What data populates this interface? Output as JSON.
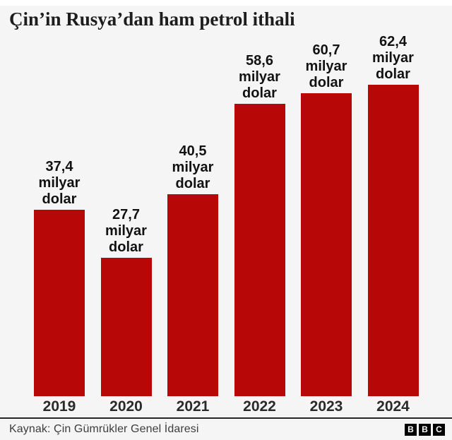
{
  "header": {
    "title": "Çin’in Rusya’dan ham petrol ithali"
  },
  "chart_data": {
    "type": "bar",
    "title": "Çin’in Rusya’dan ham petrol ithali",
    "categories": [
      "2019",
      "2020",
      "2021",
      "2022",
      "2023",
      "2024"
    ],
    "values": [
      37.4,
      27.7,
      40.5,
      58.6,
      60.7,
      62.4
    ],
    "value_labels": [
      "37,4",
      "27,7",
      "40,5",
      "58,6",
      "60,7",
      "62,4"
    ],
    "unit_lines": [
      "milyar",
      "dolar"
    ],
    "xlabel": "",
    "ylabel": "",
    "ylim": [
      0,
      65
    ],
    "grid": false,
    "legend": "none",
    "bar_color": "#b80707"
  },
  "footer": {
    "source": "Kaynak: Çin Gümrükler Genel İdaresi",
    "logo_letters": [
      "B",
      "B",
      "C"
    ]
  },
  "colors": {
    "page_background": "#ffffff",
    "card_background": "#f5f5f5",
    "bar": "#b80707",
    "title_text": "#1d1d1d",
    "label_text": "#121212",
    "tick_text": "#2a2a2a",
    "divider": "#262626",
    "source_text": "#3d3d40",
    "logo_background": "#000000",
    "logo_text": "#ffffff"
  }
}
